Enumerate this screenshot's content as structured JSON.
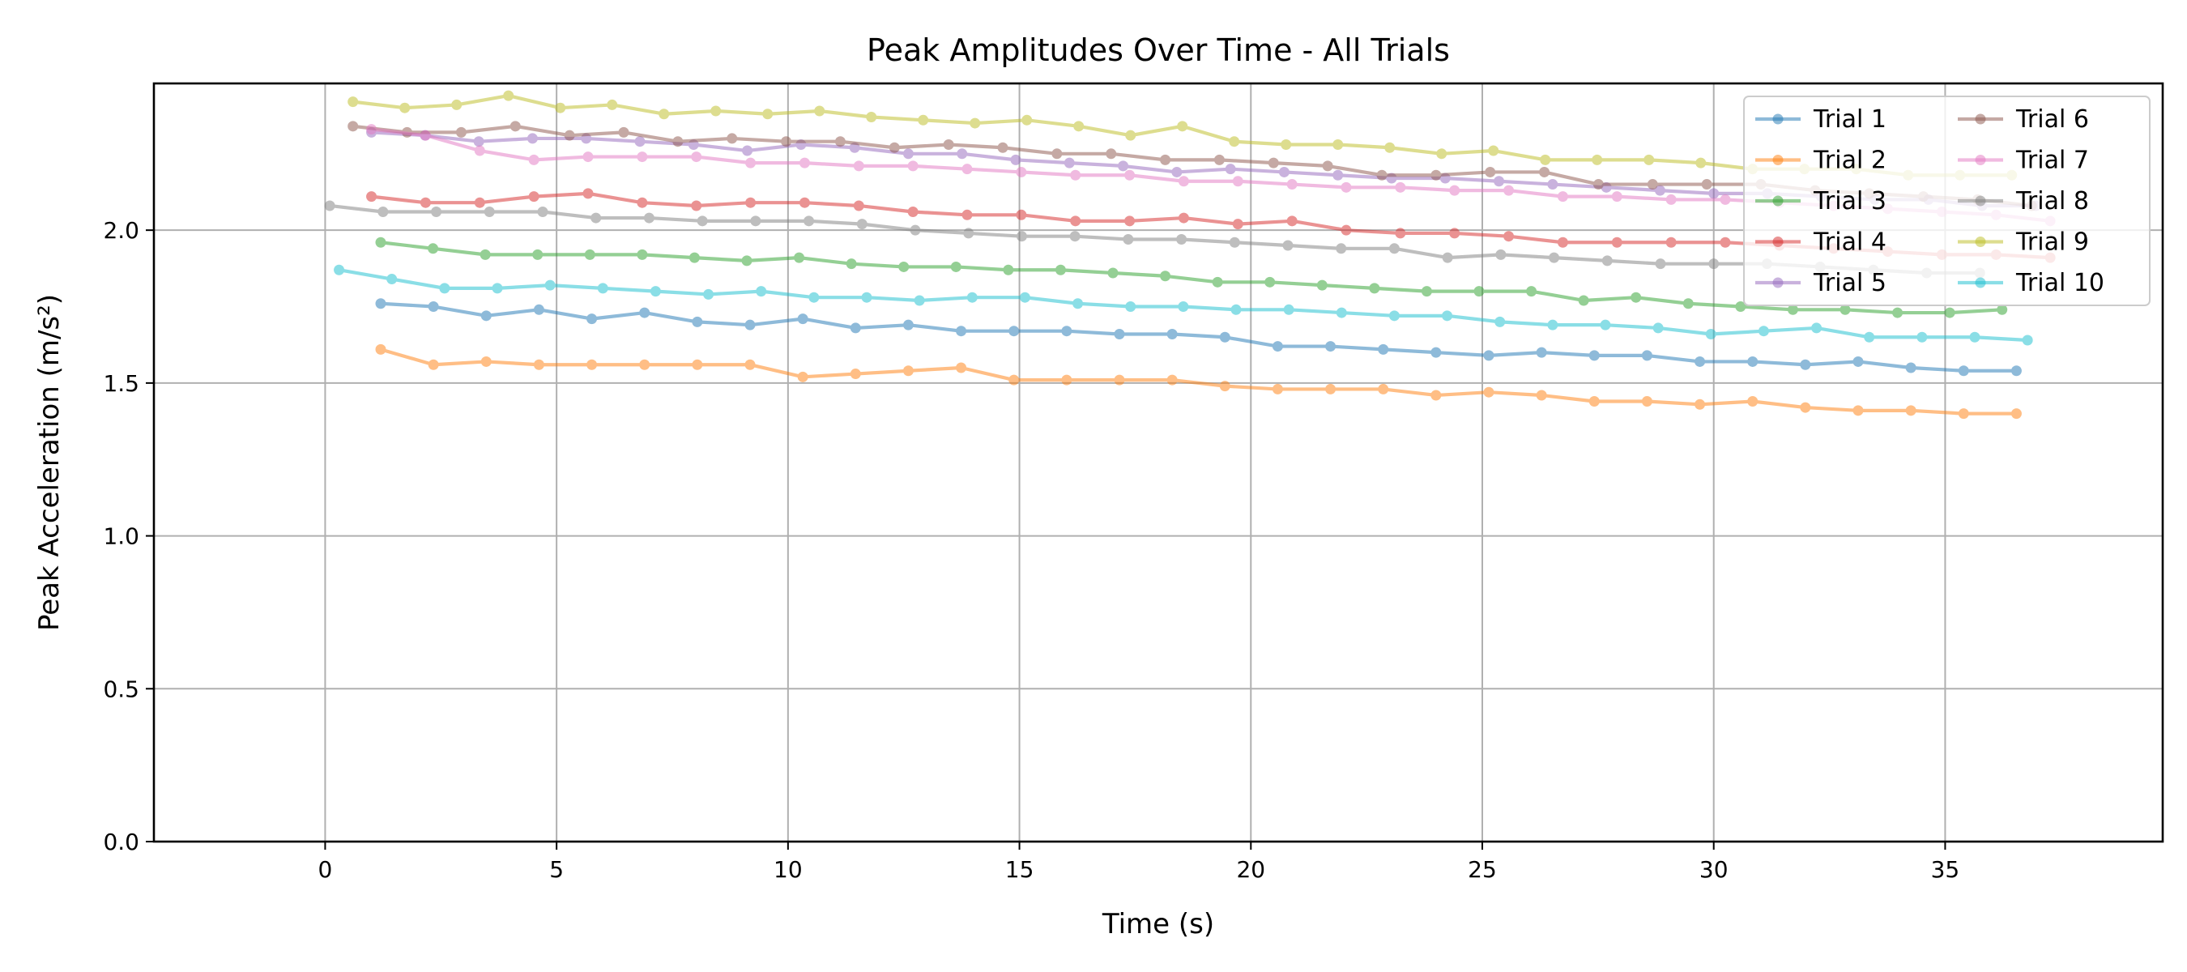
{
  "chart_data": {
    "type": "line",
    "title": "Peak Amplitudes Over Time - All Trials",
    "xlabel": "Time (s)",
    "ylabel": "Peak Acceleration (m/s²)",
    "xlim": [
      -3.7,
      39.7
    ],
    "ylim": [
      0.0,
      2.48
    ],
    "xticks": [
      0,
      5,
      10,
      15,
      20,
      25,
      30,
      35
    ],
    "yticks": [
      0.0,
      0.5,
      1.0,
      1.5,
      2.0
    ],
    "ytick_labels": [
      "0.0",
      "0.5",
      "1.0",
      "1.5",
      "2.0"
    ],
    "grid": true,
    "legend": {
      "placement": "top-right",
      "columns": 2
    },
    "series": [
      {
        "name": "Trial 1",
        "color": "#1f77b4",
        "x_start": 1.2,
        "x_step": 1.14,
        "y": [
          1.76,
          1.75,
          1.72,
          1.74,
          1.71,
          1.73,
          1.7,
          1.69,
          1.71,
          1.68,
          1.69,
          1.67,
          1.67,
          1.67,
          1.66,
          1.66,
          1.65,
          1.62,
          1.62,
          1.61,
          1.6,
          1.59,
          1.6,
          1.59,
          1.59,
          1.57,
          1.57,
          1.56,
          1.57,
          1.55,
          1.54,
          1.54
        ]
      },
      {
        "name": "Trial 2",
        "color": "#ff7f0e",
        "x_start": 1.2,
        "x_step": 1.14,
        "y": [
          1.61,
          1.56,
          1.57,
          1.56,
          1.56,
          1.56,
          1.56,
          1.56,
          1.52,
          1.53,
          1.54,
          1.55,
          1.51,
          1.51,
          1.51,
          1.51,
          1.49,
          1.48,
          1.48,
          1.48,
          1.46,
          1.47,
          1.46,
          1.44,
          1.44,
          1.43,
          1.44,
          1.42,
          1.41,
          1.41,
          1.4,
          1.4
        ]
      },
      {
        "name": "Trial 3",
        "color": "#2ca02c",
        "x_start": 1.2,
        "x_step": 1.13,
        "y": [
          1.96,
          1.94,
          1.92,
          1.92,
          1.92,
          1.92,
          1.91,
          1.9,
          1.91,
          1.89,
          1.88,
          1.88,
          1.87,
          1.87,
          1.86,
          1.85,
          1.83,
          1.83,
          1.82,
          1.81,
          1.8,
          1.8,
          1.8,
          1.77,
          1.78,
          1.76,
          1.75,
          1.74,
          1.74,
          1.73,
          1.73,
          1.74
        ]
      },
      {
        "name": "Trial 4",
        "color": "#d62728",
        "x_start": 1.0,
        "x_step": 1.17,
        "y": [
          2.11,
          2.09,
          2.09,
          2.11,
          2.12,
          2.09,
          2.08,
          2.09,
          2.09,
          2.08,
          2.06,
          2.05,
          2.05,
          2.03,
          2.03,
          2.04,
          2.02,
          2.03,
          2.0,
          1.99,
          1.99,
          1.98,
          1.96,
          1.96,
          1.96,
          1.96,
          1.95,
          1.94,
          1.93,
          1.92,
          1.92,
          1.91
        ]
      },
      {
        "name": "Trial 5",
        "color": "#9467bd",
        "x_start": 1.0,
        "x_step": 1.16,
        "y": [
          2.32,
          2.31,
          2.29,
          2.3,
          2.3,
          2.29,
          2.28,
          2.26,
          2.28,
          2.27,
          2.25,
          2.25,
          2.23,
          2.22,
          2.21,
          2.19,
          2.2,
          2.19,
          2.18,
          2.17,
          2.17,
          2.16,
          2.15,
          2.14,
          2.13,
          2.12,
          2.12,
          2.11,
          2.1,
          2.1,
          2.08,
          2.08
        ]
      },
      {
        "name": "Trial 6",
        "color": "#8c564b",
        "x_start": 0.6,
        "x_step": 1.17,
        "y": [
          2.34,
          2.32,
          2.32,
          2.34,
          2.31,
          2.32,
          2.29,
          2.3,
          2.29,
          2.29,
          2.27,
          2.28,
          2.27,
          2.25,
          2.25,
          2.23,
          2.23,
          2.22,
          2.21,
          2.18,
          2.18,
          2.19,
          2.19,
          2.15,
          2.15,
          2.15,
          2.15,
          2.13,
          2.12,
          2.11,
          2.1,
          2.08
        ]
      },
      {
        "name": "Trial 7",
        "color": "#e377c2",
        "x_start": 1.0,
        "x_step": 1.17,
        "y": [
          2.33,
          2.31,
          2.26,
          2.23,
          2.24,
          2.24,
          2.24,
          2.22,
          2.22,
          2.21,
          2.21,
          2.2,
          2.19,
          2.18,
          2.18,
          2.16,
          2.16,
          2.15,
          2.14,
          2.14,
          2.13,
          2.13,
          2.11,
          2.11,
          2.1,
          2.1,
          2.09,
          2.08,
          2.07,
          2.06,
          2.05,
          2.03
        ]
      },
      {
        "name": "Trial 8",
        "color": "#7f7f7f",
        "x_start": 0.1,
        "x_step": 1.15,
        "y": [
          2.08,
          2.06,
          2.06,
          2.06,
          2.06,
          2.04,
          2.04,
          2.03,
          2.03,
          2.03,
          2.02,
          2.0,
          1.99,
          1.98,
          1.98,
          1.97,
          1.97,
          1.96,
          1.95,
          1.94,
          1.94,
          1.91,
          1.92,
          1.91,
          1.9,
          1.89,
          1.89,
          1.89,
          1.88,
          1.87,
          1.86,
          1.86
        ]
      },
      {
        "name": "Trial 9",
        "color": "#bcbd22",
        "x_start": 0.6,
        "x_step": 1.12,
        "y": [
          2.42,
          2.4,
          2.41,
          2.44,
          2.4,
          2.41,
          2.38,
          2.39,
          2.38,
          2.39,
          2.37,
          2.36,
          2.35,
          2.36,
          2.34,
          2.31,
          2.34,
          2.29,
          2.28,
          2.28,
          2.27,
          2.25,
          2.26,
          2.23,
          2.23,
          2.23,
          2.22,
          2.2,
          2.2,
          2.2,
          2.18,
          2.18,
          2.18
        ]
      },
      {
        "name": "Trial 10",
        "color": "#17becf",
        "x_start": 0.3,
        "x_step": 1.14,
        "y": [
          1.87,
          1.84,
          1.81,
          1.81,
          1.82,
          1.81,
          1.8,
          1.79,
          1.8,
          1.78,
          1.78,
          1.77,
          1.78,
          1.78,
          1.76,
          1.75,
          1.75,
          1.74,
          1.74,
          1.73,
          1.72,
          1.72,
          1.7,
          1.69,
          1.69,
          1.68,
          1.66,
          1.67,
          1.68,
          1.65,
          1.65,
          1.65,
          1.64
        ]
      }
    ]
  }
}
